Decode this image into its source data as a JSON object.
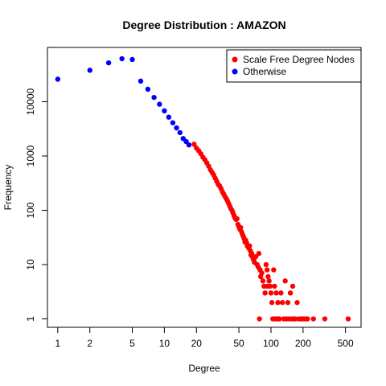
{
  "chart_data": {
    "type": "scatter",
    "title": "Degree Distribution : AMAZON",
    "xlabel": "Degree",
    "ylabel": "Frequency",
    "x_scale": "log",
    "y_scale": "log",
    "xlim": [
      0.8,
      700
    ],
    "ylim": [
      0.7,
      100000
    ],
    "x_ticks": [
      1,
      2,
      5,
      10,
      20,
      50,
      100,
      200,
      500
    ],
    "x_tick_labels": [
      "1",
      "2",
      "5",
      "10",
      "20",
      "50",
      "100",
      "200",
      "500"
    ],
    "y_ticks": [
      1,
      10,
      100,
      1000,
      10000
    ],
    "y_tick_labels": [
      "1",
      "10",
      "100",
      "1000",
      "10000"
    ],
    "grid": false,
    "legend_position": "top-right",
    "series": [
      {
        "name": "Scale Free Degree Nodes",
        "color": "#ff0000",
        "points": [
          [
            19,
            1650
          ],
          [
            20,
            1400
          ],
          [
            21,
            1250
          ],
          [
            22,
            1100
          ],
          [
            23,
            950
          ],
          [
            24,
            850
          ],
          [
            25,
            750
          ],
          [
            26,
            650
          ],
          [
            27,
            560
          ],
          [
            28,
            500
          ],
          [
            29,
            450
          ],
          [
            30,
            390
          ],
          [
            31,
            340
          ],
          [
            32,
            300
          ],
          [
            33,
            280
          ],
          [
            34,
            250
          ],
          [
            35,
            220
          ],
          [
            36,
            200
          ],
          [
            37,
            180
          ],
          [
            38,
            165
          ],
          [
            39,
            150
          ],
          [
            40,
            135
          ],
          [
            41,
            120
          ],
          [
            42,
            108
          ],
          [
            43,
            100
          ],
          [
            44,
            90
          ],
          [
            45,
            80
          ],
          [
            46,
            72
          ],
          [
            47,
            68
          ],
          [
            48,
            70
          ],
          [
            49,
            55
          ],
          [
            50,
            50
          ],
          [
            51,
            45
          ],
          [
            52,
            48
          ],
          [
            53,
            40
          ],
          [
            54,
            36
          ],
          [
            55,
            33
          ],
          [
            56,
            30
          ],
          [
            57,
            26
          ],
          [
            58,
            28
          ],
          [
            59,
            25
          ],
          [
            60,
            22
          ],
          [
            62,
            20
          ],
          [
            63,
            22
          ],
          [
            64,
            18
          ],
          [
            65,
            15
          ],
          [
            66,
            16
          ],
          [
            67,
            14
          ],
          [
            68,
            13
          ],
          [
            69,
            12
          ],
          [
            70,
            11
          ],
          [
            72,
            14
          ],
          [
            74,
            10
          ],
          [
            76,
            9
          ],
          [
            77,
            16
          ],
          [
            79,
            8
          ],
          [
            80,
            6
          ],
          [
            82,
            7
          ],
          [
            84,
            5
          ],
          [
            86,
            4
          ],
          [
            88,
            3
          ],
          [
            90,
            10
          ],
          [
            92,
            8
          ],
          [
            94,
            6
          ],
          [
            96,
            5
          ],
          [
            98,
            4
          ],
          [
            100,
            3
          ],
          [
            102,
            2
          ],
          [
            104,
            1
          ],
          [
            106,
            8
          ],
          [
            108,
            4
          ],
          [
            112,
            3
          ],
          [
            116,
            2
          ],
          [
            120,
            1
          ],
          [
            124,
            3
          ],
          [
            128,
            2
          ],
          [
            132,
            1
          ],
          [
            136,
            5
          ],
          [
            140,
            1
          ],
          [
            144,
            2
          ],
          [
            148,
            1
          ],
          [
            152,
            3
          ],
          [
            158,
            1
          ],
          [
            164,
            1
          ],
          [
            170,
            1
          ],
          [
            176,
            2
          ],
          [
            184,
            1
          ],
          [
            192,
            1
          ],
          [
            200,
            1
          ],
          [
            210,
            1
          ],
          [
            220,
            1
          ],
          [
            250,
            1
          ],
          [
            320,
            1
          ],
          [
            530,
            1
          ],
          [
            78,
            1
          ],
          [
            92,
            4
          ],
          [
            110,
            1
          ],
          [
            160,
            4
          ],
          [
            114,
            1
          ],
          [
            118,
            1
          ]
        ]
      },
      {
        "name": "Otherwise",
        "color": "#0000ff",
        "points": [
          [
            1,
            26000
          ],
          [
            2,
            38000
          ],
          [
            3,
            52000
          ],
          [
            4,
            62000
          ],
          [
            5,
            60000
          ],
          [
            6,
            24000
          ],
          [
            7,
            17000
          ],
          [
            8,
            12000
          ],
          [
            9,
            9000
          ],
          [
            10,
            6800
          ],
          [
            11,
            5200
          ],
          [
            12,
            4100
          ],
          [
            13,
            3300
          ],
          [
            14,
            2700
          ],
          [
            15,
            2100
          ],
          [
            16,
            1850
          ],
          [
            17,
            1600
          ]
        ]
      }
    ]
  }
}
